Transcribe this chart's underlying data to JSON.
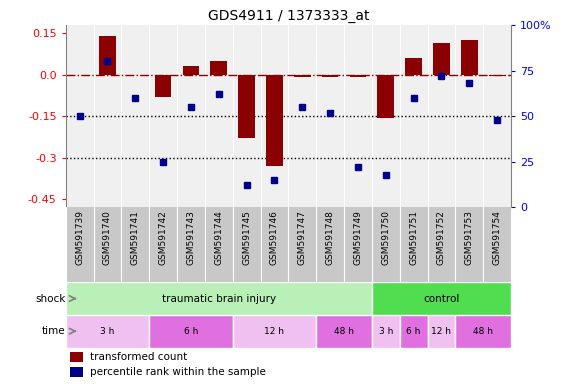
{
  "title": "GDS4911 / 1373333_at",
  "samples": [
    "GSM591739",
    "GSM591740",
    "GSM591741",
    "GSM591742",
    "GSM591743",
    "GSM591744",
    "GSM591745",
    "GSM591746",
    "GSM591747",
    "GSM591748",
    "GSM591749",
    "GSM591750",
    "GSM591751",
    "GSM591752",
    "GSM591753",
    "GSM591754"
  ],
  "bar_values": [
    0.0,
    0.14,
    0.0,
    -0.08,
    0.03,
    0.05,
    -0.23,
    -0.33,
    -0.01,
    -0.01,
    -0.01,
    -0.155,
    0.06,
    0.115,
    0.125,
    -0.005
  ],
  "dot_values": [
    50,
    80,
    60,
    25,
    55,
    62,
    12,
    15,
    55,
    52,
    22,
    18,
    60,
    72,
    68,
    48
  ],
  "ylim_left": [
    -0.48,
    0.18
  ],
  "ylim_right": [
    0,
    100
  ],
  "yticks_left": [
    0.15,
    0.0,
    -0.15,
    -0.3,
    -0.45
  ],
  "yticks_right": [
    100,
    75,
    50,
    25,
    0
  ],
  "dotted_lines": [
    -0.15,
    -0.3
  ],
  "bar_color": "#8B0000",
  "dot_color": "#00008B",
  "background_color": "#ffffff",
  "plot_bg_color": "#f0f0f0",
  "label_bg_color": "#c8c8c8",
  "shock_groups": [
    {
      "label": "traumatic brain injury",
      "start": 0,
      "end": 11,
      "color": "#b8f0b8"
    },
    {
      "label": "control",
      "start": 11,
      "end": 16,
      "color": "#50dd50"
    }
  ],
  "time_groups": [
    {
      "label": "3 h",
      "start": 0,
      "end": 3,
      "color": "#f0c0f0"
    },
    {
      "label": "6 h",
      "start": 3,
      "end": 6,
      "color": "#e070e0"
    },
    {
      "label": "12 h",
      "start": 6,
      "end": 9,
      "color": "#f0c0f0"
    },
    {
      "label": "48 h",
      "start": 9,
      "end": 11,
      "color": "#e070e0"
    },
    {
      "label": "3 h",
      "start": 11,
      "end": 12,
      "color": "#f0c0f0"
    },
    {
      "label": "6 h",
      "start": 12,
      "end": 13,
      "color": "#e070e0"
    },
    {
      "label": "12 h",
      "start": 13,
      "end": 14,
      "color": "#f0c0f0"
    },
    {
      "label": "48 h",
      "start": 14,
      "end": 16,
      "color": "#e070e0"
    }
  ],
  "legend_items": [
    "transformed count",
    "percentile rank within the sample"
  ],
  "shock_label": "shock",
  "time_label": "time"
}
